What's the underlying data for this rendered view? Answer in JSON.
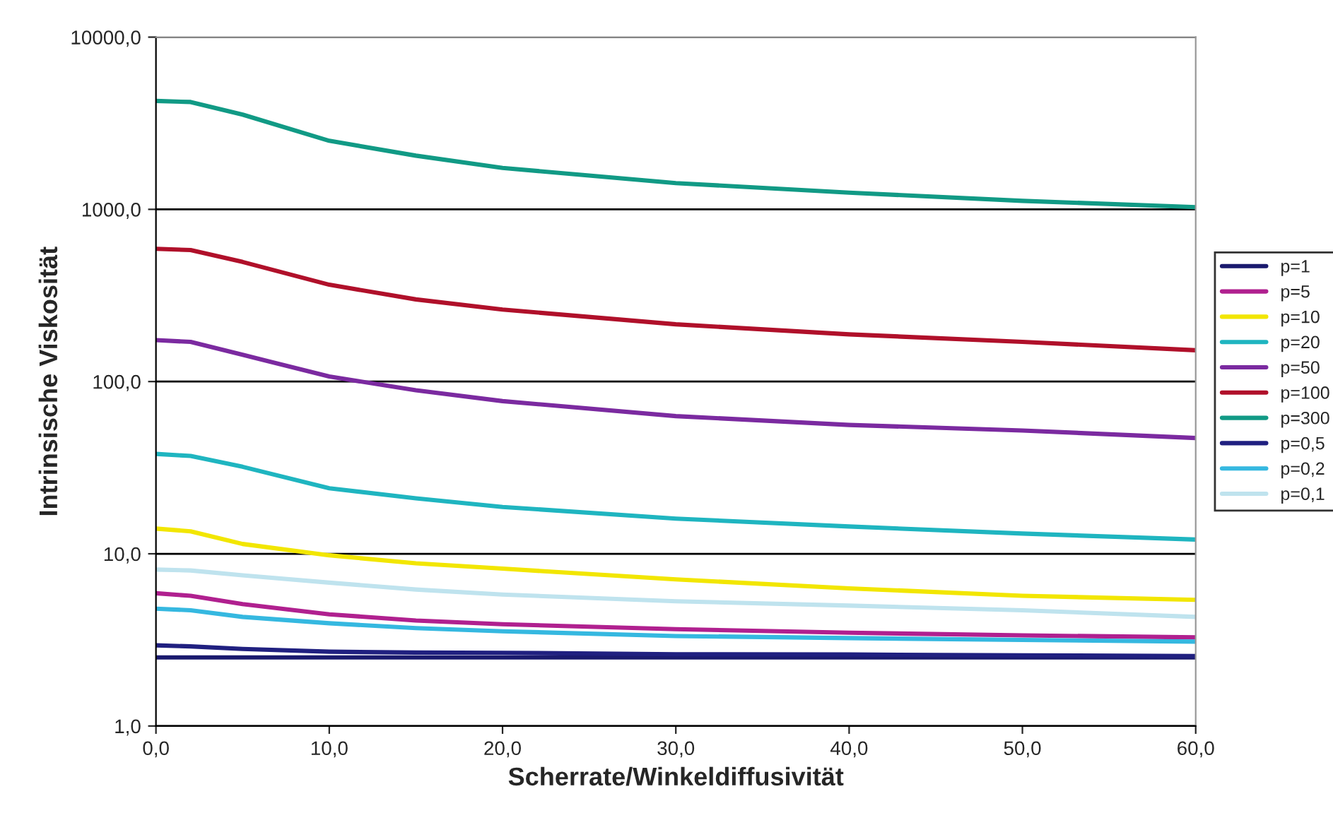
{
  "chart_data": {
    "type": "line",
    "xlabel": "Scherrate/Winkeldiffusivität",
    "ylabel": "Intrinsische Viskosität",
    "log": "y",
    "grid": "y",
    "legend": "right",
    "marker": "none",
    "line_style": "solid",
    "xlim": [
      0,
      60
    ],
    "ylim": [
      1,
      10000
    ],
    "xticks": [
      {
        "value": 0,
        "label": "0,0"
      },
      {
        "value": 10,
        "label": "10,0"
      },
      {
        "value": 20,
        "label": "20,0"
      },
      {
        "value": 30,
        "label": "30,0"
      },
      {
        "value": 40,
        "label": "40,0"
      },
      {
        "value": 50,
        "label": "50,0"
      },
      {
        "value": 60,
        "label": "60,0"
      }
    ],
    "yticks": [
      {
        "value": 1,
        "label": "1,0"
      },
      {
        "value": 10,
        "label": "10,0"
      },
      {
        "value": 100,
        "label": "100,0"
      },
      {
        "value": 1000,
        "label": "1000,0"
      },
      {
        "value": 10000,
        "label": "10000,0"
      }
    ],
    "x": [
      0,
      2,
      5,
      10,
      15,
      20,
      30,
      40,
      50,
      60
    ],
    "series": [
      {
        "name": "p=1",
        "color": "#1a1a6e",
        "values": [
          2.5,
          2.5,
          2.5,
          2.5,
          2.5,
          2.5,
          2.5,
          2.5,
          2.5,
          2.5
        ]
      },
      {
        "name": "p=5",
        "color": "#b0208f",
        "values": [
          5.9,
          5.7,
          5.1,
          4.45,
          4.1,
          3.9,
          3.65,
          3.48,
          3.36,
          3.27
        ]
      },
      {
        "name": "p=10",
        "color": "#f2e600",
        "values": [
          14,
          13.5,
          11.4,
          9.8,
          8.8,
          8.2,
          7.1,
          6.3,
          5.7,
          5.4
        ]
      },
      {
        "name": "p=20",
        "color": "#1fb5c0",
        "values": [
          38,
          37,
          32,
          24,
          21,
          18.7,
          16,
          14.4,
          13.1,
          12.1
        ]
      },
      {
        "name": "p=50",
        "color": "#7b2aa0",
        "values": [
          174,
          170,
          143,
          107,
          89,
          77,
          63,
          56,
          52,
          47
        ]
      },
      {
        "name": "p=100",
        "color": "#b0102a",
        "values": [
          590,
          580,
          495,
          365,
          300,
          262,
          215,
          188,
          170,
          152
        ]
      },
      {
        "name": "p=300",
        "color": "#119a85",
        "values": [
          4260,
          4200,
          3550,
          2500,
          2050,
          1740,
          1420,
          1250,
          1120,
          1030
        ]
      },
      {
        "name": "p=0,5",
        "color": "#202080",
        "values": [
          2.94,
          2.9,
          2.8,
          2.7,
          2.67,
          2.66,
          2.61,
          2.6,
          2.57,
          2.55
        ]
      },
      {
        "name": "p=0,2",
        "color": "#35b8e0",
        "values": [
          4.8,
          4.7,
          4.3,
          3.95,
          3.7,
          3.55,
          3.33,
          3.24,
          3.16,
          3.09
        ]
      },
      {
        "name": "p=0,1",
        "color": "#bfe3ee",
        "values": [
          8.1,
          8.0,
          7.5,
          6.8,
          6.2,
          5.8,
          5.3,
          5.0,
          4.7,
          4.3
        ]
      }
    ]
  }
}
